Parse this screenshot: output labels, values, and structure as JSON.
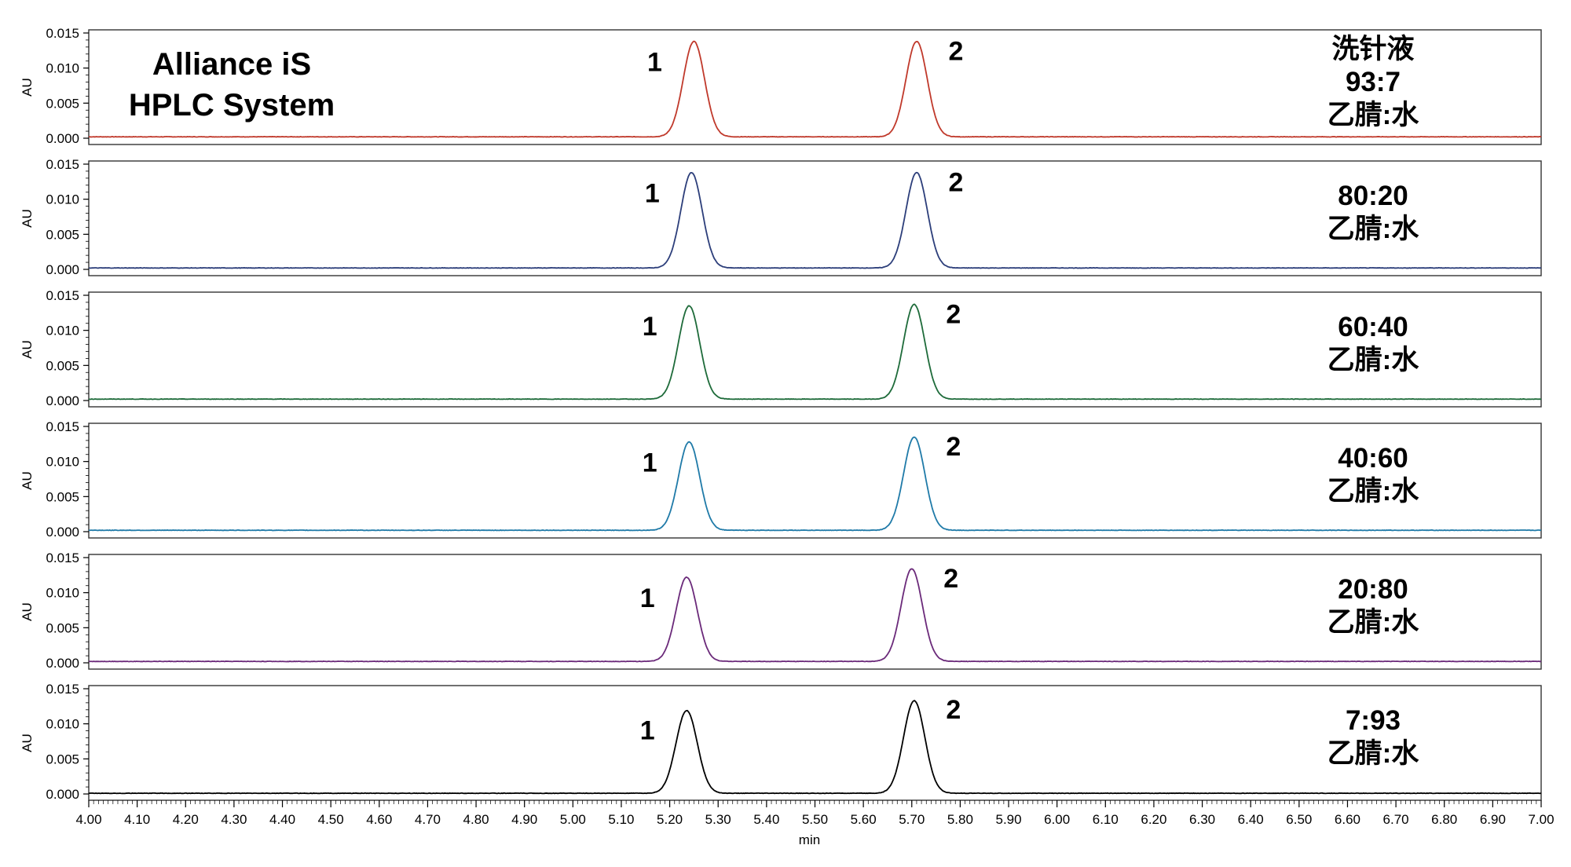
{
  "chart_data": {
    "type": "line",
    "title_lines": [
      "Alliance iS",
      "HPLC System"
    ],
    "xlabel": "min",
    "ylabel": "AU",
    "xlim": [
      4.0,
      7.0
    ],
    "ylim": [
      0.0,
      0.015
    ],
    "x_ticks": [
      "4.00",
      "4.10",
      "4.20",
      "4.30",
      "4.40",
      "4.50",
      "4.60",
      "4.70",
      "4.80",
      "4.90",
      "5.00",
      "5.10",
      "5.20",
      "5.30",
      "5.40",
      "5.50",
      "5.60",
      "5.70",
      "5.80",
      "5.90",
      "6.00",
      "6.10",
      "6.20",
      "6.30",
      "6.40",
      "6.50",
      "6.60",
      "6.70",
      "6.80",
      "6.90",
      "7.00"
    ],
    "y_ticks": [
      "0.000",
      "0.005",
      "0.010",
      "0.015"
    ],
    "grid": false,
    "panels": [
      {
        "color": "#c0392b",
        "label_lines": [
          "洗针液",
          "93:7",
          "乙腈:水"
        ],
        "baseline": 0.0002,
        "peaks": [
          {
            "label": "1",
            "rt": 5.25,
            "height": 0.0136,
            "width": 0.022
          },
          {
            "label": "2",
            "rt": 5.71,
            "height": 0.0136,
            "width": 0.022
          }
        ]
      },
      {
        "color": "#2c3e7a",
        "label_lines": [
          "80:20",
          "乙腈:水"
        ],
        "baseline": 0.0002,
        "peaks": [
          {
            "label": "1",
            "rt": 5.245,
            "height": 0.0136,
            "width": 0.022
          },
          {
            "label": "2",
            "rt": 5.71,
            "height": 0.0136,
            "width": 0.022
          }
        ]
      },
      {
        "color": "#1e6b3a",
        "label_lines": [
          "60:40",
          "乙腈:水"
        ],
        "baseline": 0.0002,
        "peaks": [
          {
            "label": "1",
            "rt": 5.24,
            "height": 0.0133,
            "width": 0.022
          },
          {
            "label": "2",
            "rt": 5.705,
            "height": 0.0135,
            "width": 0.022
          }
        ]
      },
      {
        "color": "#1f7aa8",
        "label_lines": [
          "40:60",
          "乙腈:水"
        ],
        "baseline": 0.0002,
        "peaks": [
          {
            "label": "1",
            "rt": 5.24,
            "height": 0.0126,
            "width": 0.022
          },
          {
            "label": "2",
            "rt": 5.705,
            "height": 0.0133,
            "width": 0.022
          }
        ]
      },
      {
        "color": "#6b2a7a",
        "label_lines": [
          "20:80",
          "乙腈:水"
        ],
        "baseline": 0.0002,
        "peaks": [
          {
            "label": "1",
            "rt": 5.235,
            "height": 0.012,
            "width": 0.022
          },
          {
            "label": "2",
            "rt": 5.7,
            "height": 0.0132,
            "width": 0.022
          }
        ]
      },
      {
        "color": "#000000",
        "label_lines": [
          "7:93",
          "乙腈:水"
        ],
        "baseline": 0.0001,
        "peaks": [
          {
            "label": "1",
            "rt": 5.235,
            "height": 0.0118,
            "width": 0.022
          },
          {
            "label": "2",
            "rt": 5.705,
            "height": 0.0132,
            "width": 0.022
          }
        ]
      }
    ]
  }
}
